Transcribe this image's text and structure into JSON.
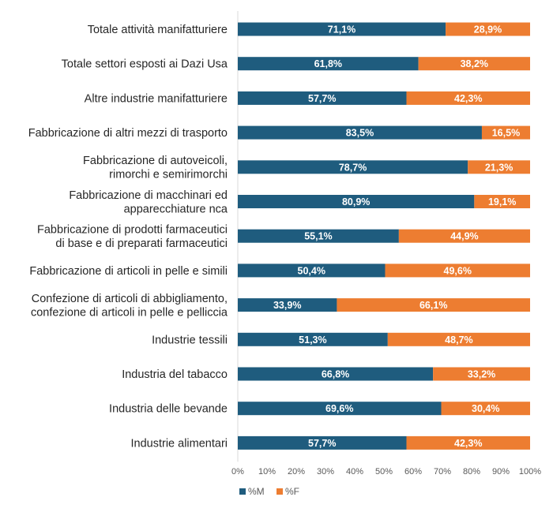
{
  "chart_data": {
    "type": "bar",
    "orientation": "horizontal",
    "stacked": "percent",
    "categories": [
      [
        "Totale attività manifatturiere"
      ],
      [
        "Totale settori esposti ai Dazi Usa"
      ],
      [
        "Altre industrie manifatturiere"
      ],
      [
        "Fabbricazione di altri mezzi di trasporto"
      ],
      [
        "Fabbricazione di autoveicoli,",
        "rimorchi e semirimorchi"
      ],
      [
        "Fabbricazione di macchinari ed",
        "apparecchiature nca"
      ],
      [
        "Fabbricazione di prodotti farmaceutici",
        "di base e di preparati farmaceutici"
      ],
      [
        "Fabbricazione di articoli in pelle e simili"
      ],
      [
        "Confezione di articoli di abbigliamento,",
        "confezione di articoli in pelle e pelliccia"
      ],
      [
        "Industrie tessili"
      ],
      [
        "Industria del tabacco"
      ],
      [
        "Industria delle bevande"
      ],
      [
        "Industrie alimentari"
      ]
    ],
    "series": [
      {
        "name": "%M",
        "color": "#1F5C7E",
        "values": [
          71.1,
          61.8,
          57.7,
          83.5,
          78.7,
          80.9,
          55.1,
          50.4,
          33.9,
          51.3,
          66.8,
          69.6,
          57.7
        ],
        "labels": [
          "71,1%",
          "61,8%",
          "57,7%",
          "83,5%",
          "78,7%",
          "80,9%",
          "55,1%",
          "50,4%",
          "33,9%",
          "51,3%",
          "66,8%",
          "69,6%",
          "57,7%"
        ]
      },
      {
        "name": "%F",
        "color": "#ED7D31",
        "values": [
          28.9,
          38.2,
          42.3,
          16.5,
          21.3,
          19.1,
          44.9,
          49.6,
          66.1,
          48.7,
          33.2,
          30.4,
          42.3
        ],
        "labels": [
          "28,9%",
          "38,2%",
          "42,3%",
          "16,5%",
          "21,3%",
          "19,1%",
          "44,9%",
          "49,6%",
          "66,1%",
          "48,7%",
          "33,2%",
          "30,4%",
          "42,3%"
        ]
      }
    ],
    "xlim": [
      0,
      100
    ],
    "x_ticks": [
      "0%",
      "10%",
      "20%",
      "30%",
      "40%",
      "50%",
      "60%",
      "70%",
      "80%",
      "90%",
      "100%"
    ],
    "legend_position": "bottom-left",
    "grid": false
  }
}
